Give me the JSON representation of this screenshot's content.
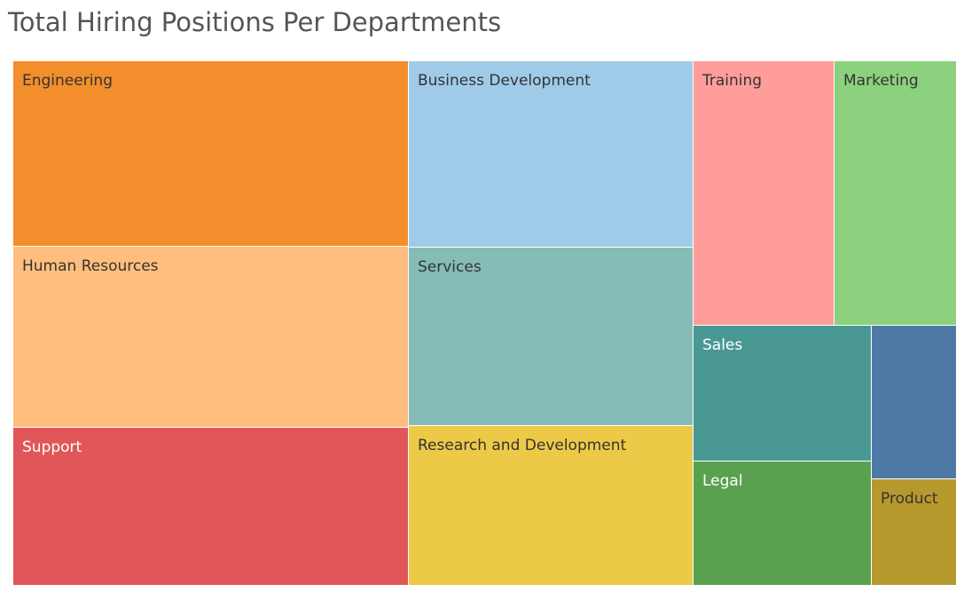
{
  "chart_data": {
    "type": "treemap",
    "title": "Total Hiring Positions Per Departments",
    "items": [
      {
        "label": "Engineering",
        "color": "#f28e2b",
        "text_color": "#333333"
      },
      {
        "label": "Human Resources",
        "color": "#ffbe7d",
        "text_color": "#333333"
      },
      {
        "label": "Support",
        "color": "#e15759",
        "text_color": "#ffffff"
      },
      {
        "label": "Business Development",
        "color": "#a0cbe8",
        "text_color": "#333333"
      },
      {
        "label": "Services",
        "color": "#86bcb6",
        "text_color": "#333333"
      },
      {
        "label": "Research and Development",
        "color": "#edc948",
        "text_color": "#333333"
      },
      {
        "label": "Training",
        "color": "#ff9d9a",
        "text_color": "#333333"
      },
      {
        "label": "Marketing",
        "color": "#8cd17d",
        "text_color": "#333333"
      },
      {
        "label": "Sales",
        "color": "#499894",
        "text_color": "#ffffff"
      },
      {
        "label": "",
        "color": "#4e79a7",
        "text_color": "#ffffff"
      },
      {
        "label": "Legal",
        "color": "#59a14f",
        "text_color": "#ffffff"
      },
      {
        "label": "Product",
        "color": "#b6992d",
        "text_color": "#333333"
      }
    ]
  }
}
